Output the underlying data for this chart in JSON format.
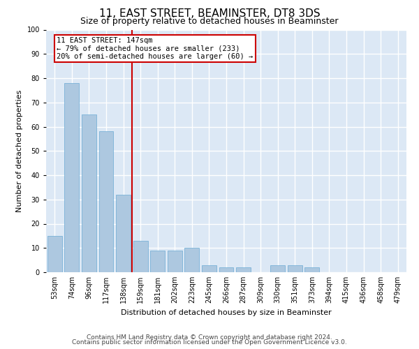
{
  "title": "11, EAST STREET, BEAMINSTER, DT8 3DS",
  "subtitle": "Size of property relative to detached houses in Beaminster",
  "xlabel": "Distribution of detached houses by size in Beaminster",
  "ylabel": "Number of detached properties",
  "categories": [
    "53sqm",
    "74sqm",
    "96sqm",
    "117sqm",
    "138sqm",
    "159sqm",
    "181sqm",
    "202sqm",
    "223sqm",
    "245sqm",
    "266sqm",
    "287sqm",
    "309sqm",
    "330sqm",
    "351sqm",
    "373sqm",
    "394sqm",
    "415sqm",
    "436sqm",
    "458sqm",
    "479sqm"
  ],
  "values": [
    15,
    78,
    65,
    58,
    32,
    13,
    9,
    9,
    10,
    3,
    2,
    2,
    0,
    3,
    3,
    2,
    0,
    0,
    0,
    0,
    0
  ],
  "bar_color": "#adc8e0",
  "bar_edge_color": "#6aaad4",
  "vline_color": "#cc0000",
  "annotation_text": "11 EAST STREET: 147sqm\n← 79% of detached houses are smaller (233)\n20% of semi-detached houses are larger (60) →",
  "annotation_box_color": "#cc0000",
  "ylim": [
    0,
    100
  ],
  "yticks": [
    0,
    10,
    20,
    30,
    40,
    50,
    60,
    70,
    80,
    90,
    100
  ],
  "background_color": "#dce8f5",
  "grid_color": "#ffffff",
  "footer1": "Contains HM Land Registry data © Crown copyright and database right 2024.",
  "footer2": "Contains public sector information licensed under the Open Government Licence v3.0.",
  "title_fontsize": 11,
  "subtitle_fontsize": 9,
  "label_fontsize": 8,
  "tick_fontsize": 7,
  "annotation_fontsize": 7.5,
  "footer_fontsize": 6.5
}
